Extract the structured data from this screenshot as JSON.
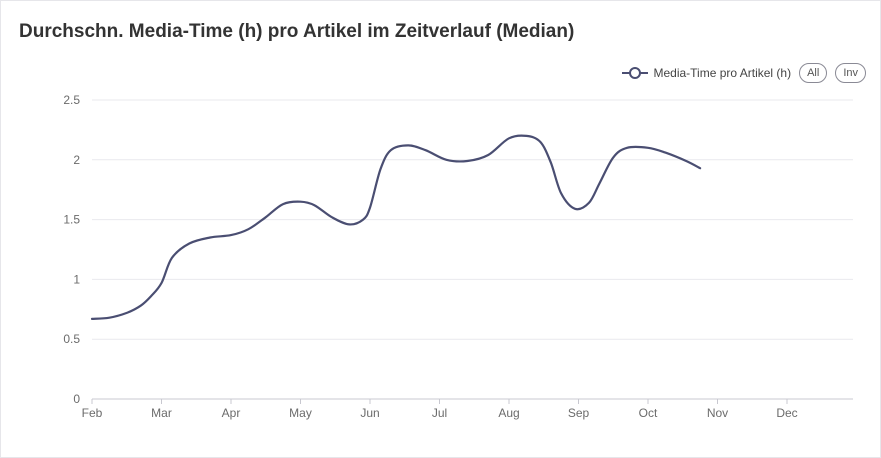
{
  "chart_data": {
    "type": "line",
    "title": "Durchschn. Media-Time (h) pro Artikel im Zeitverlauf (Median)",
    "xlabel": "",
    "ylabel": "",
    "x": [
      "Feb",
      "Mar",
      "Apr",
      "May",
      "Jun",
      "Jul",
      "Aug",
      "Sep",
      "Oct",
      "Nov",
      "Dec"
    ],
    "ylim": [
      0,
      2.5
    ],
    "yticks": [
      "0",
      "0.5",
      "1",
      "1.5",
      "2",
      "2.5"
    ],
    "grid": true,
    "legend_position": "top-right",
    "series": [
      {
        "name": "Media-Time pro Artikel (h)",
        "color": "#4a4e72",
        "points": [
          [
            0.0,
            0.67
          ],
          [
            0.25,
            0.68
          ],
          [
            0.5,
            0.72
          ],
          [
            0.7,
            0.78
          ],
          [
            0.85,
            0.86
          ],
          [
            1.0,
            0.97
          ],
          [
            1.15,
            1.18
          ],
          [
            1.4,
            1.3
          ],
          [
            1.7,
            1.35
          ],
          [
            2.0,
            1.37
          ],
          [
            2.25,
            1.42
          ],
          [
            2.5,
            1.52
          ],
          [
            2.75,
            1.63
          ],
          [
            3.0,
            1.65
          ],
          [
            3.2,
            1.62
          ],
          [
            3.45,
            1.52
          ],
          [
            3.7,
            1.46
          ],
          [
            3.9,
            1.5
          ],
          [
            4.0,
            1.6
          ],
          [
            4.15,
            1.92
          ],
          [
            4.3,
            2.08
          ],
          [
            4.55,
            2.12
          ],
          [
            4.8,
            2.08
          ],
          [
            5.1,
            2.0
          ],
          [
            5.4,
            1.99
          ],
          [
            5.7,
            2.04
          ],
          [
            6.0,
            2.18
          ],
          [
            6.25,
            2.2
          ],
          [
            6.45,
            2.15
          ],
          [
            6.6,
            1.98
          ],
          [
            6.75,
            1.72
          ],
          [
            6.95,
            1.59
          ],
          [
            7.15,
            1.64
          ],
          [
            7.3,
            1.8
          ],
          [
            7.5,
            2.02
          ],
          [
            7.7,
            2.1
          ],
          [
            8.0,
            2.1
          ],
          [
            8.25,
            2.06
          ],
          [
            8.55,
            1.99
          ],
          [
            8.75,
            1.93
          ]
        ]
      }
    ]
  },
  "legend": {
    "series_label": "Media-Time pro Artikel (h)",
    "all_button": "All",
    "inv_button": "Inv"
  },
  "colors": {
    "line": "#4a4e72",
    "grid": "#e9e9ee",
    "axis": "#c8c8d0",
    "title": "#333333"
  }
}
